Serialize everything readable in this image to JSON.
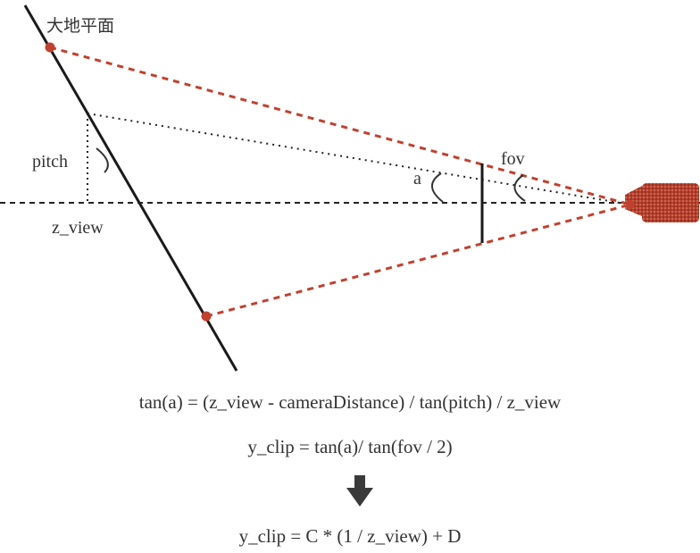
{
  "labels": {
    "ground": "大地平面",
    "pitch": "pitch",
    "z_view": "z_view",
    "fov": "fov",
    "a": "a"
  },
  "formulas": {
    "line1": "tan(a) = (z_view - cameraDistance) / tan(pitch) / z_view",
    "line2": "y_clip = tan(a)/ tan(fov / 2)",
    "line3": "y_clip = C * (1 / z_view) + D"
  },
  "colors": {
    "ground_line": "#1a1a1a",
    "ray": "#c0412f",
    "camera": "#b7402c",
    "text": "#333333"
  },
  "icons": {
    "camera": "camera-icon",
    "arrow": "arrow-down-icon"
  }
}
